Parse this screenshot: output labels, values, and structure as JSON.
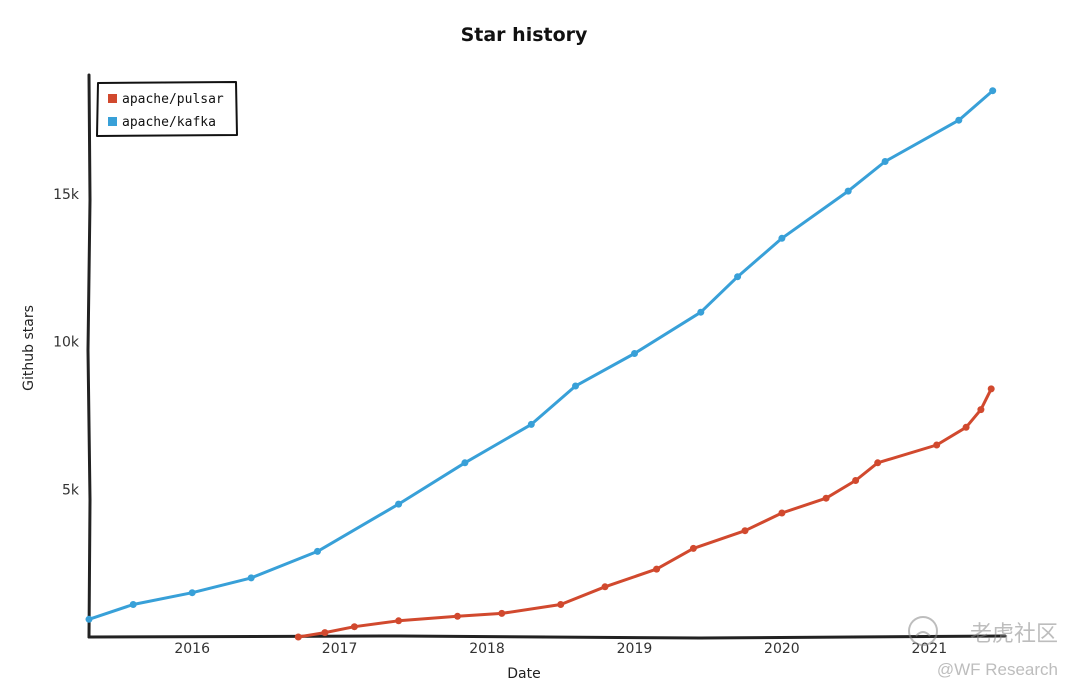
{
  "chart_data": {
    "type": "line",
    "title": "Star history",
    "xlabel": "Date",
    "ylabel": "Github stars",
    "x_ticks": [
      "2016",
      "2017",
      "2018",
      "2019",
      "2020",
      "2021"
    ],
    "y_ticks": [
      "5k",
      "10k",
      "15k"
    ],
    "legend_position": "top-left",
    "series": [
      {
        "name": "apache/pulsar",
        "color": "#d1492e",
        "points": [
          [
            2016.72,
            0
          ],
          [
            2016.9,
            150
          ],
          [
            2017.1,
            350
          ],
          [
            2017.4,
            550
          ],
          [
            2017.8,
            700
          ],
          [
            2018.1,
            800
          ],
          [
            2018.5,
            1100
          ],
          [
            2018.8,
            1700
          ],
          [
            2019.15,
            2300
          ],
          [
            2019.4,
            3000
          ],
          [
            2019.75,
            3600
          ],
          [
            2020.0,
            4200
          ],
          [
            2020.3,
            4700
          ],
          [
            2020.5,
            5300
          ],
          [
            2020.65,
            5900
          ],
          [
            2021.05,
            6500
          ],
          [
            2021.25,
            7100
          ],
          [
            2021.35,
            7700
          ],
          [
            2021.42,
            8400
          ]
        ]
      },
      {
        "name": "apache/kafka",
        "color": "#38a0d8",
        "points": [
          [
            2015.3,
            600
          ],
          [
            2015.6,
            1100
          ],
          [
            2016.0,
            1500
          ],
          [
            2016.4,
            2000
          ],
          [
            2016.85,
            2900
          ],
          [
            2017.4,
            4500
          ],
          [
            2017.85,
            5900
          ],
          [
            2018.3,
            7200
          ],
          [
            2018.6,
            8500
          ],
          [
            2019.0,
            9600
          ],
          [
            2019.45,
            11000
          ],
          [
            2019.7,
            12200
          ],
          [
            2020.0,
            13500
          ],
          [
            2020.45,
            15100
          ],
          [
            2020.7,
            16100
          ],
          [
            2021.2,
            17500
          ],
          [
            2021.43,
            18500
          ]
        ]
      }
    ],
    "ylim": [
      0,
      19200
    ],
    "xlim": [
      2015.3,
      2021.5
    ],
    "grid": false
  },
  "watermark": {
    "brand": "老虎社区",
    "handle": "@WF Research"
  }
}
